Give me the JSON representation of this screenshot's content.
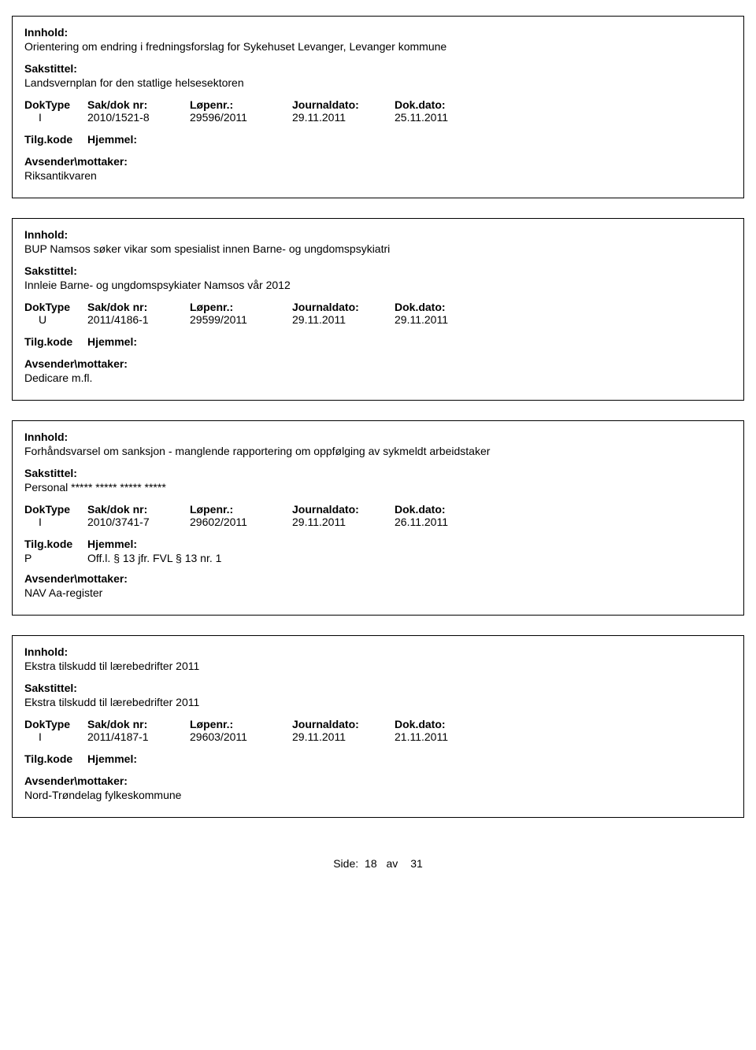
{
  "labels": {
    "innhold": "Innhold:",
    "sakstittel": "Sakstittel:",
    "doktype": "DokType",
    "saknr": "Sak/dok nr:",
    "lopenr": "Løpenr.:",
    "journaldato": "Journaldato:",
    "dokdato": "Dok.dato:",
    "tilgkode": "Tilg.kode",
    "hjemmel": "Hjemmel:",
    "avsender": "Avsender\\mottaker:"
  },
  "records": [
    {
      "innhold": "Orientering om endring i fredningsforslag for Sykehuset Levanger, Levanger kommune",
      "sakstittel": "Landsvernplan for den statlige helsesektoren",
      "doktype": "I",
      "saknr": "2010/1521-8",
      "lopenr": "29596/2011",
      "journaldato": "29.11.2011",
      "dokdato": "25.11.2011",
      "tilgkode": "",
      "hjemmel": "",
      "avsender": "Riksantikvaren"
    },
    {
      "innhold": "BUP Namsos søker vikar som spesialist innen Barne- og ungdomspsykiatri",
      "sakstittel": "Innleie Barne- og ungdomspsykiater Namsos vår 2012",
      "doktype": "U",
      "saknr": "2011/4186-1",
      "lopenr": "29599/2011",
      "journaldato": "29.11.2011",
      "dokdato": "29.11.2011",
      "tilgkode": "",
      "hjemmel": "",
      "avsender": "Dedicare m.fl."
    },
    {
      "innhold": "Forhåndsvarsel om sanksjon - manglende rapportering om oppfølging av sykmeldt arbeidstaker",
      "sakstittel": "Personal ***** ***** ***** *****",
      "doktype": "I",
      "saknr": "2010/3741-7",
      "lopenr": "29602/2011",
      "journaldato": "29.11.2011",
      "dokdato": "26.11.2011",
      "tilgkode": "P",
      "hjemmel": "Off.l. § 13 jfr. FVL § 13 nr. 1",
      "avsender": "NAV Aa-register"
    },
    {
      "innhold": "Ekstra tilskudd til lærebedrifter 2011",
      "sakstittel": "Ekstra tilskudd til lærebedrifter 2011",
      "doktype": "I",
      "saknr": "2011/4187-1",
      "lopenr": "29603/2011",
      "journaldato": "29.11.2011",
      "dokdato": "21.11.2011",
      "tilgkode": "",
      "hjemmel": "",
      "avsender": "Nord-Trøndelag fylkeskommune"
    }
  ],
  "footer": {
    "label": "Side:",
    "page": "18",
    "av": "av",
    "total": "31"
  }
}
